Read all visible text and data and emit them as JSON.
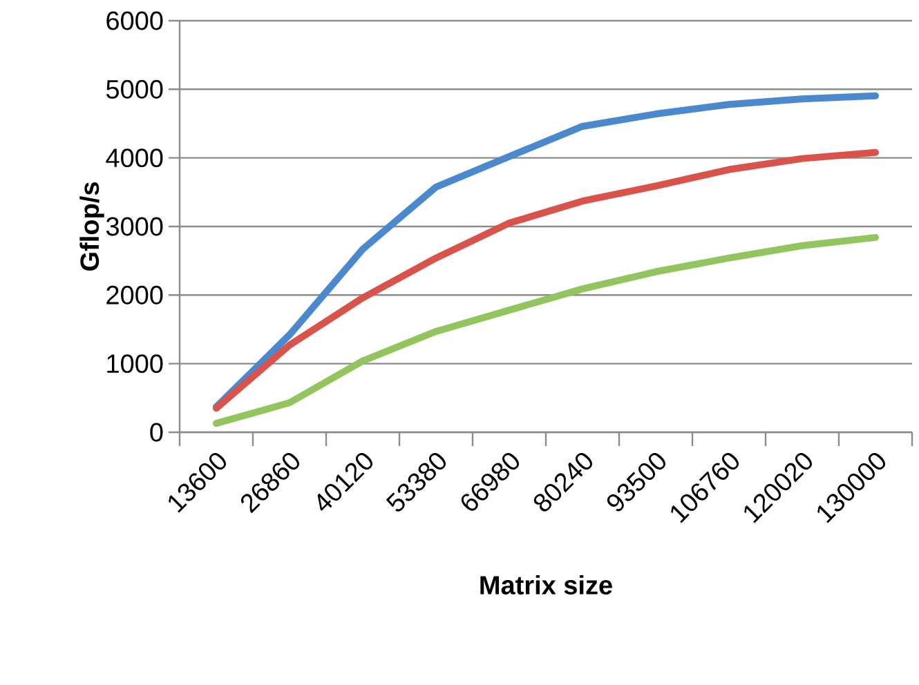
{
  "chart_data": {
    "type": "line",
    "xlabel": "Matrix size",
    "ylabel": "Gflop/s",
    "categories": [
      "13600",
      "26860",
      "40120",
      "53380",
      "66980",
      "80240",
      "93500",
      "106760",
      "120020",
      "130000"
    ],
    "series": [
      {
        "color": "#4a89cd",
        "values": [
          370,
          1420,
          2670,
          3575,
          4020,
          4460,
          4640,
          4780,
          4860,
          4905
        ]
      },
      {
        "color": "#d9534a",
        "values": [
          350,
          1270,
          1960,
          2540,
          3050,
          3370,
          3590,
          3830,
          3990,
          4080
        ]
      },
      {
        "color": "#92c55e",
        "values": [
          130,
          430,
          1040,
          1470,
          1780,
          2090,
          2340,
          2540,
          2720,
          2840
        ]
      }
    ],
    "ylim": [
      0,
      6000
    ],
    "yticks": [
      0,
      1000,
      2000,
      3000,
      4000,
      5000,
      6000
    ],
    "grid": "y",
    "marker": "none",
    "line_style": "solid"
  }
}
